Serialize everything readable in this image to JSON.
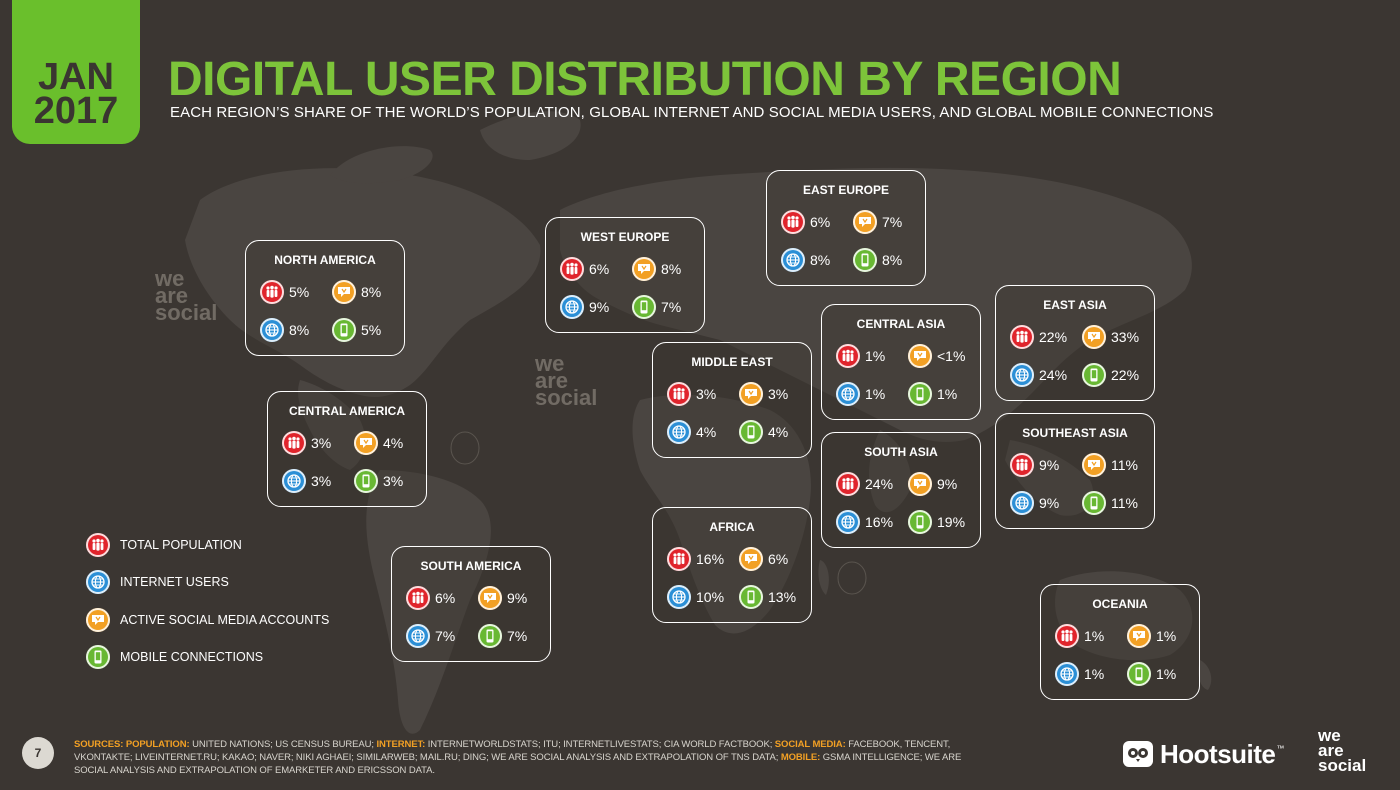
{
  "header": {
    "date_month": "JAN",
    "date_year": "2017",
    "title": "DIGITAL USER DISTRIBUTION BY REGION",
    "subtitle": "EACH REGION’S SHARE OF THE WORLD’S POPULATION, GLOBAL INTERNET AND SOCIAL MEDIA USERS, AND GLOBAL MOBILE CONNECTIONS"
  },
  "colors": {
    "title_green": "#7dc43a",
    "population_red": "#e0242c",
    "internet_blue": "#2b8fd6",
    "social_orange": "#f2a024",
    "mobile_green": "#68b833",
    "background": "#3b3632"
  },
  "icons": {
    "population": "people-icon",
    "internet": "globe-icon",
    "social": "speech-bubble-icon",
    "mobile": "mobile-phone-icon"
  },
  "regions": [
    {
      "name": "NORTH AMERICA",
      "population": "5%",
      "social": "8%",
      "internet": "8%",
      "mobile": "5%"
    },
    {
      "name": "WEST EUROPE",
      "population": "6%",
      "social": "8%",
      "internet": "9%",
      "mobile": "7%"
    },
    {
      "name": "EAST EUROPE",
      "population": "6%",
      "social": "7%",
      "internet": "8%",
      "mobile": "8%"
    },
    {
      "name": "MIDDLE EAST",
      "population": "3%",
      "social": "3%",
      "internet": "4%",
      "mobile": "4%"
    },
    {
      "name": "CENTRAL ASIA",
      "population": "1%",
      "social": "<1%",
      "internet": "1%",
      "mobile": "1%"
    },
    {
      "name": "EAST ASIA",
      "population": "22%",
      "social": "33%",
      "internet": "24%",
      "mobile": "22%"
    },
    {
      "name": "CENTRAL AMERICA",
      "population": "3%",
      "social": "4%",
      "internet": "3%",
      "mobile": "3%"
    },
    {
      "name": "SOUTH ASIA",
      "population": "24%",
      "social": "9%",
      "internet": "16%",
      "mobile": "19%"
    },
    {
      "name": "SOUTHEAST ASIA",
      "population": "9%",
      "social": "11%",
      "internet": "9%",
      "mobile": "11%"
    },
    {
      "name": "AFRICA",
      "population": "16%",
      "social": "6%",
      "internet": "10%",
      "mobile": "13%"
    },
    {
      "name": "SOUTH AMERICA",
      "population": "6%",
      "social": "9%",
      "internet": "7%",
      "mobile": "7%"
    },
    {
      "name": "OCEANIA",
      "population": "1%",
      "social": "1%",
      "internet": "1%",
      "mobile": "1%"
    }
  ],
  "legend": [
    {
      "label": "TOTAL POPULATION",
      "color": "#e0242c",
      "icon": "people-icon"
    },
    {
      "label": "INTERNET USERS",
      "color": "#2b8fd6",
      "icon": "globe-icon"
    },
    {
      "label": "ACTIVE SOCIAL MEDIA ACCOUNTS",
      "color": "#f2a024",
      "icon": "speech-bubble-icon"
    },
    {
      "label": "MOBILE CONNECTIONS",
      "color": "#68b833",
      "icon": "mobile-phone-icon"
    }
  ],
  "footer": {
    "page_number": "7",
    "sources_label": "SOURCES:",
    "population_label": "POPULATION:",
    "population_text": "UNITED NATIONS; US CENSUS BUREAU;",
    "internet_label": "INTERNET:",
    "internet_text": "INTERNETWORLDSTATS; ITU; INTERNETLIVESTATS; CIA WORLD FACTBOOK;",
    "social_label": "SOCIAL MEDIA:",
    "social_text": "FACEBOOK, TENCENT, VKONTAKTE; LIVEINTERNET.RU; KAKAO; NAVER; NIKI AGHAEI; SIMILARWEB; MAIL.RU; DING; WE ARE SOCIAL ANALYSIS AND EXTRAPOLATION OF TNS DATA;",
    "mobile_label": "MOBILE:",
    "mobile_text": "GSMA INTELLIGENCE; WE ARE SOCIAL ANALYSIS AND EXTRAPOLATION OF EMARKETER AND ERICSSON DATA.",
    "hootsuite": "Hootsuite",
    "hootsuite_tm": "™",
    "brand_line1": "we",
    "brand_line2": "are",
    "brand_line3": "social"
  }
}
